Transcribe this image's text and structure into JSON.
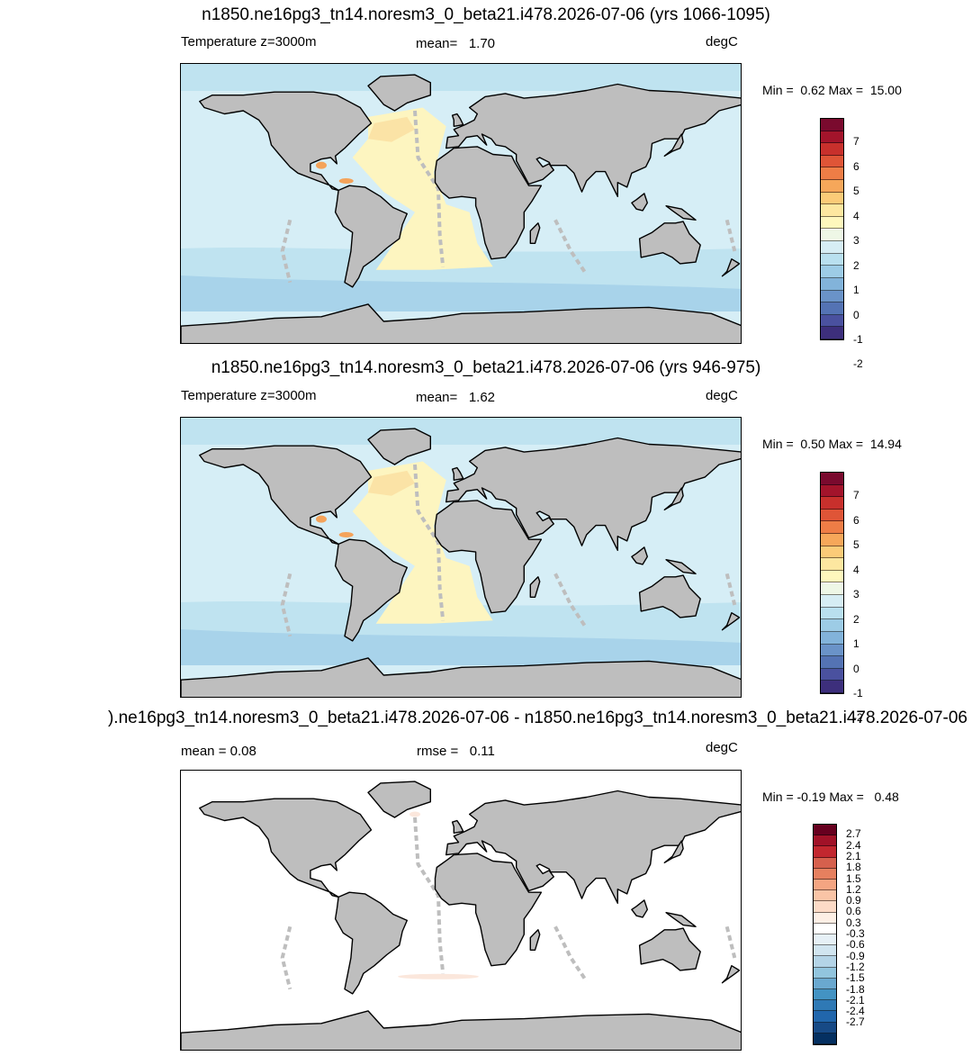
{
  "panels": [
    {
      "title": "n1850.ne16pg3_tn14.noresm3_0_beta21.i478.2026-07-06 (yrs 1066-1095)",
      "left_label": "Temperature z=3000m",
      "center_label_name": "mean=",
      "center_label_value": "1.70",
      "units": "degC",
      "min_label": "Min =",
      "min_value": "0.62",
      "max_label": "Max =",
      "max_value": "15.00",
      "colorbar": {
        "colors": [
          "#7a0a2e",
          "#a3142b",
          "#c8302c",
          "#df5537",
          "#ee7d46",
          "#f6a75a",
          "#fbcb78",
          "#fde7a0",
          "#fef7bd",
          "#eef7e6",
          "#d6edf4",
          "#b9e0ef",
          "#9dcce6",
          "#82b3da",
          "#6a93c8",
          "#5473b4",
          "#4a519f",
          "#3d2f7c"
        ],
        "tick_labels": [
          "7",
          "6",
          "5",
          "4",
          "3",
          "2",
          "1",
          "0",
          "-1",
          "-2"
        ]
      },
      "map": {
        "ocean_colors": [
          "#d6eef6",
          "#bfe3f0",
          "#a8d3ea",
          "#fdf5c0",
          "#f4a35a"
        ],
        "land_color": "#bebebe"
      }
    },
    {
      "title": "n1850.ne16pg3_tn14.noresm3_0_beta21.i478.2026-07-06 (yrs 946-975)",
      "left_label": "Temperature z=3000m",
      "center_label_name": "mean=",
      "center_label_value": "1.62",
      "units": "degC",
      "min_label": "Min =",
      "min_value": "0.50",
      "max_label": "Max =",
      "max_value": "14.94",
      "colorbar": {
        "colors": [
          "#7a0a2e",
          "#a3142b",
          "#c8302c",
          "#df5537",
          "#ee7d46",
          "#f6a75a",
          "#fbcb78",
          "#fde7a0",
          "#fef7bd",
          "#eef7e6",
          "#d6edf4",
          "#b9e0ef",
          "#9dcce6",
          "#82b3da",
          "#6a93c8",
          "#5473b4",
          "#4a519f",
          "#3d2f7c"
        ],
        "tick_labels": [
          "7",
          "6",
          "5",
          "4",
          "3",
          "2",
          "1",
          "0",
          "-1",
          "-2"
        ]
      },
      "map": {
        "ocean_colors": [
          "#d6eef6",
          "#bfe3f0",
          "#a8d3ea",
          "#fdf5c0",
          "#f4a35a"
        ],
        "land_color": "#bebebe"
      }
    },
    {
      "title": ").ne16pg3_tn14.noresm3_0_beta21.i478.2026-07-06 - n1850.ne16pg3_tn14.noresm3_0_beta21.i478.2026-07-06",
      "left_label": "mean =   0.08",
      "center_label_name": "rmse =",
      "center_label_value": "0.11",
      "units": "degC",
      "min_label": "Min =",
      "min_value": "-0.19",
      "max_label": "Max =",
      "max_value": "0.48",
      "colorbar": {
        "colors": [
          "#67001f",
          "#a11228",
          "#c2272f",
          "#d6604d",
          "#e6805f",
          "#f4a582",
          "#f9c4a6",
          "#fddbc7",
          "#fdefe5",
          "#ffffff",
          "#e6f0f6",
          "#d1e5f0",
          "#b4d4e7",
          "#92c5de",
          "#6aa8cf",
          "#4393c3",
          "#2f79b5",
          "#2166ac",
          "#174a86",
          "#053061"
        ],
        "tick_labels": [
          "2.7",
          "2.4",
          "2.1",
          "1.8",
          "1.5",
          "1.2",
          "0.9",
          "0.6",
          "0.3",
          "-0.3",
          "-0.6",
          "-0.9",
          "-1.2",
          "-1.5",
          "-1.8",
          "-2.1",
          "-2.4",
          "-2.7"
        ]
      },
      "map": {
        "ocean_colors": [
          "#ffffff"
        ],
        "land_color": "#bebebe"
      }
    }
  ]
}
